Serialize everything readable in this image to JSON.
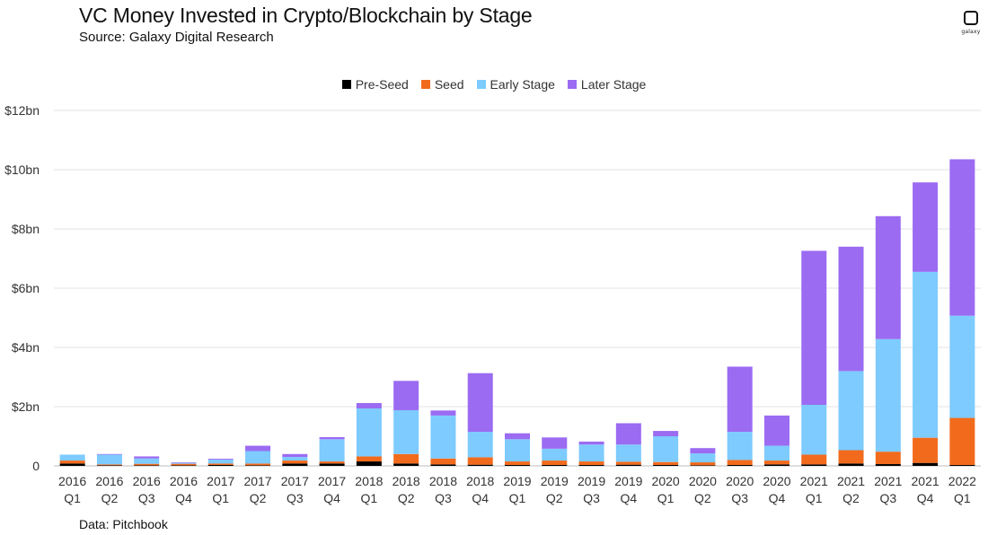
{
  "header": {
    "title": "VC Money Invested in Crypto/Blockchain by Stage",
    "subtitle": "Source: Galaxy Digital Research",
    "logo_text": "galaxy"
  },
  "footer": {
    "note": "Data: Pitchbook"
  },
  "colors": {
    "pre_seed": "#000000",
    "seed": "#f26b1d",
    "early_stage": "#7dcbff",
    "later_stage": "#9b6bf2",
    "grid": "#e3e3e3"
  },
  "chart_data": {
    "type": "bar",
    "stacked": true,
    "title": "VC Money Invested in Crypto/Blockchain by Stage",
    "xlabel": "",
    "ylabel": "",
    "ylim": [
      0,
      12
    ],
    "yticks": [
      0,
      2,
      4,
      6,
      8,
      10,
      12
    ],
    "ytick_labels": [
      "0",
      "$2bn",
      "$4bn",
      "$6bn",
      "$8bn",
      "$10bn",
      "$12bn"
    ],
    "grid": true,
    "legend_position": "top-center",
    "categories": [
      [
        "2016",
        "Q1"
      ],
      [
        "2016",
        "Q2"
      ],
      [
        "2016",
        "Q3"
      ],
      [
        "2016",
        "Q4"
      ],
      [
        "2017",
        "Q1"
      ],
      [
        "2017",
        "Q2"
      ],
      [
        "2017",
        "Q3"
      ],
      [
        "2017",
        "Q4"
      ],
      [
        "2018",
        "Q1"
      ],
      [
        "2018",
        "Q2"
      ],
      [
        "2018",
        "Q3"
      ],
      [
        "2018",
        "Q4"
      ],
      [
        "2019",
        "Q1"
      ],
      [
        "2019",
        "Q2"
      ],
      [
        "2019",
        "Q3"
      ],
      [
        "2019",
        "Q4"
      ],
      [
        "2020",
        "Q1"
      ],
      [
        "2020",
        "Q2"
      ],
      [
        "2020",
        "Q3"
      ],
      [
        "2020",
        "Q4"
      ],
      [
        "2021",
        "Q1"
      ],
      [
        "2021",
        "Q2"
      ],
      [
        "2021",
        "Q3"
      ],
      [
        "2021",
        "Q4"
      ],
      [
        "2022",
        "Q1"
      ]
    ],
    "series": [
      {
        "name": "Pre-Seed",
        "color": "#000000",
        "values": [
          0.08,
          0.02,
          0.02,
          0.02,
          0.03,
          0.02,
          0.08,
          0.08,
          0.15,
          0.08,
          0.05,
          0.04,
          0.03,
          0.03,
          0.03,
          0.04,
          0.03,
          0.02,
          0.03,
          0.05,
          0.05,
          0.08,
          0.06,
          0.1,
          0.03
        ]
      },
      {
        "name": "Seed",
        "color": "#f26b1d",
        "values": [
          0.1,
          0.03,
          0.05,
          0.05,
          0.05,
          0.06,
          0.1,
          0.07,
          0.17,
          0.32,
          0.2,
          0.25,
          0.12,
          0.15,
          0.12,
          0.1,
          0.1,
          0.1,
          0.17,
          0.13,
          0.33,
          0.45,
          0.42,
          0.85,
          1.59
        ]
      },
      {
        "name": "Early Stage",
        "color": "#7dcbff",
        "values": [
          0.2,
          0.33,
          0.18,
          0.03,
          0.13,
          0.42,
          0.12,
          0.75,
          1.62,
          1.48,
          1.45,
          0.86,
          0.75,
          0.4,
          0.57,
          0.58,
          0.87,
          0.3,
          0.95,
          0.5,
          1.68,
          2.67,
          3.8,
          5.6,
          3.45
        ]
      },
      {
        "name": "Later Stage",
        "color": "#9b6bf2",
        "values": [
          0.0,
          0.02,
          0.07,
          0.02,
          0.03,
          0.18,
          0.1,
          0.07,
          0.18,
          0.99,
          0.17,
          1.98,
          0.2,
          0.38,
          0.1,
          0.72,
          0.18,
          0.18,
          2.2,
          1.02,
          5.2,
          4.2,
          4.15,
          3.02,
          5.28
        ]
      }
    ]
  }
}
